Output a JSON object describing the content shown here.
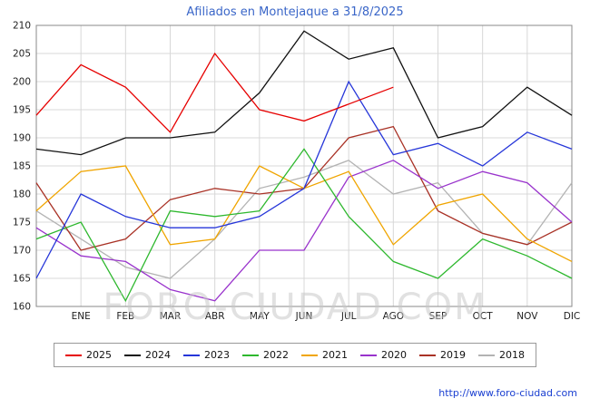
{
  "watermark": "FORO-CIUDAD.COM",
  "footer": {
    "url": "http://www.foro-ciudad.com"
  },
  "chart_data": {
    "type": "line",
    "title": "Afiliados en Montejaque a 31/8/2025",
    "x_labels": [
      "ENE",
      "FEB",
      "MAR",
      "ABR",
      "MAY",
      "JUN",
      "JUL",
      "AGO",
      "SEP",
      "OCT",
      "NOV",
      "DIC"
    ],
    "leading_edge_point": true,
    "ylim": [
      160,
      210
    ],
    "y_ticks": [
      160,
      165,
      170,
      175,
      180,
      185,
      190,
      195,
      200,
      205,
      210
    ],
    "grid": true,
    "legend_position": "bottom",
    "series": [
      {
        "name": "2025",
        "color": "#e60000",
        "values": [
          194,
          203,
          199,
          191,
          205,
          195,
          193,
          196,
          199,
          null,
          null,
          null,
          null
        ]
      },
      {
        "name": "2024",
        "color": "#111111",
        "values": [
          188,
          187,
          190,
          190,
          191,
          198,
          209,
          204,
          206,
          190,
          192,
          199,
          194
        ]
      },
      {
        "name": "2023",
        "color": "#2636d9",
        "values": [
          165,
          180,
          176,
          174,
          174,
          176,
          181,
          200,
          187,
          189,
          185,
          191,
          188
        ]
      },
      {
        "name": "2022",
        "color": "#2eb82e",
        "values": [
          172,
          175,
          161,
          177,
          176,
          177,
          188,
          176,
          168,
          165,
          172,
          169,
          165
        ]
      },
      {
        "name": "2021",
        "color": "#f0a500",
        "values": [
          177,
          184,
          185,
          171,
          172,
          185,
          181,
          184,
          171,
          178,
          180,
          172,
          168
        ]
      },
      {
        "name": "2020",
        "color": "#9933cc",
        "values": [
          174,
          169,
          168,
          163,
          161,
          170,
          170,
          183,
          186,
          181,
          184,
          182,
          175
        ]
      },
      {
        "name": "2019",
        "color": "#a93226",
        "values": [
          182,
          170,
          172,
          179,
          181,
          180,
          181,
          190,
          192,
          177,
          173,
          171,
          175
        ]
      },
      {
        "name": "2018",
        "color": "#b3b3b3",
        "values": [
          177,
          172,
          167,
          165,
          172,
          181,
          183,
          186,
          180,
          182,
          173,
          171,
          182
        ]
      }
    ]
  }
}
